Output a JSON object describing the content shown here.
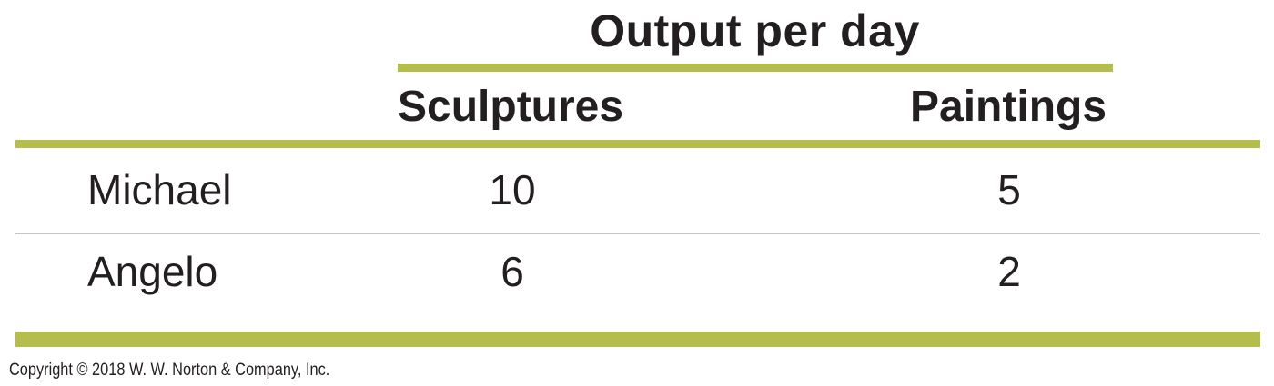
{
  "table": {
    "group_header": "Output per day",
    "columns": [
      "Sculptures",
      "Paintings"
    ],
    "rows": [
      {
        "name": "Michael",
        "values": [
          "10",
          "5"
        ]
      },
      {
        "name": "Angelo",
        "values": [
          "6",
          "2"
        ]
      }
    ]
  },
  "footer": {
    "copyright": "Copyright © 2018 W. W. Norton & Company, Inc."
  },
  "colors": {
    "rule_accent": "#b5bd4c",
    "divider": "#c3c6c6",
    "text": "#231f20"
  }
}
